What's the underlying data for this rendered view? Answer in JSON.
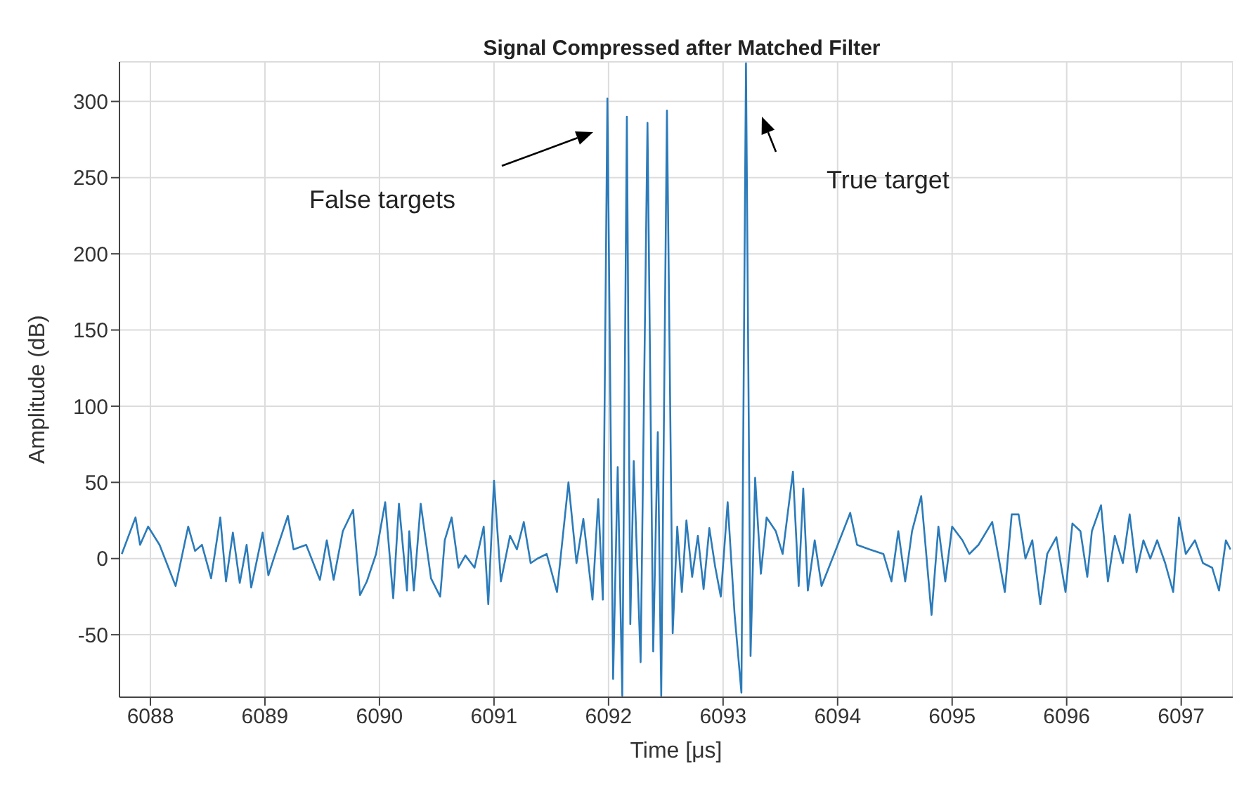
{
  "chart_data": {
    "type": "line",
    "title": "Signal Compressed after Matched Filter",
    "xlabel": "Time [μs]",
    "ylabel": "Amplitude (dB)",
    "annotations": [
      "False targets",
      "True target"
    ],
    "xlim": [
      6087.73,
      6097.45
    ],
    "ylim": [
      -91,
      326
    ],
    "xticks": [
      6088,
      6089,
      6090,
      6091,
      6092,
      6093,
      6094,
      6095,
      6096,
      6097
    ],
    "yticks": [
      -50,
      0,
      50,
      100,
      150,
      200,
      250,
      300
    ],
    "grid": true,
    "legend": false,
    "marker": "none",
    "line_style": "solid",
    "x": [
      6087.75,
      6087.87,
      6087.91,
      6087.98,
      6088.08,
      6088.22,
      6088.33,
      6088.39,
      6088.45,
      6088.53,
      6088.61,
      6088.66,
      6088.72,
      6088.78,
      6088.84,
      6088.88,
      6088.98,
      6089.03,
      6089.09,
      6089.2,
      6089.25,
      6089.36,
      6089.48,
      6089.54,
      6089.6,
      6089.68,
      6089.77,
      6089.83,
      6089.89,
      6089.97,
      6090.05,
      6090.12,
      6090.17,
      6090.24,
      6090.26,
      6090.3,
      6090.36,
      6090.45,
      6090.53,
      6090.57,
      6090.63,
      6090.69,
      6090.75,
      6090.83,
      6090.91,
      6090.95,
      6091.0,
      6091.06,
      6091.14,
      6091.2,
      6091.26,
      6091.32,
      6091.38,
      6091.46,
      6091.55,
      6091.65,
      6091.72,
      6091.78,
      6091.86,
      6091.91,
      6091.95,
      6091.99,
      6092.04,
      6092.08,
      6092.12,
      6092.16,
      6092.19,
      6092.22,
      6092.28,
      6092.34,
      6092.39,
      6092.43,
      6092.46,
      6092.51,
      6092.56,
      6092.6,
      6092.64,
      6092.68,
      6092.73,
      6092.78,
      6092.83,
      6092.88,
      6092.93,
      6092.98,
      6093.04,
      6093.1,
      6093.16,
      6093.2,
      6093.24,
      6093.28,
      6093.33,
      6093.38,
      6093.46,
      6093.52,
      6093.61,
      6093.66,
      6093.7,
      6093.74,
      6093.8,
      6093.86,
      6093.97,
      6094.11,
      6094.17,
      6094.28,
      6094.4,
      6094.47,
      6094.53,
      6094.59,
      6094.65,
      6094.73,
      6094.82,
      6094.88,
      6094.94,
      6095.0,
      6095.09,
      6095.15,
      6095.23,
      6095.35,
      6095.46,
      6095.52,
      6095.58,
      6095.64,
      6095.7,
      6095.77,
      6095.83,
      6095.91,
      6095.99,
      6096.05,
      6096.12,
      6096.18,
      6096.22,
      6096.3,
      6096.36,
      6096.42,
      6096.49,
      6096.55,
      6096.61,
      6096.67,
      6096.73,
      6096.79,
      6096.86,
      6096.93,
      6096.98,
      6097.04,
      6097.12,
      6097.19,
      6097.27,
      6097.33,
      6097.39,
      6097.43
    ],
    "series": [
      {
        "color": "#2b7bba",
        "values": [
          3,
          27,
          9,
          21,
          9,
          -18,
          21,
          5,
          9,
          -13,
          27,
          -15,
          17,
          -16,
          9,
          -19,
          17,
          -11,
          3,
          28,
          6,
          9,
          -14,
          12,
          -14,
          18,
          32,
          -24,
          -15,
          3,
          37,
          -26,
          36,
          -21,
          18,
          -21,
          36,
          -13,
          -25,
          12,
          27,
          -6,
          2,
          -6,
          21,
          -30,
          51,
          -15,
          15,
          6,
          24,
          -3,
          0,
          3,
          -22,
          50,
          -3,
          26,
          -27,
          39,
          -27,
          302,
          -79,
          60,
          -90,
          290,
          -43,
          64,
          -68,
          286,
          -61,
          83,
          -90,
          294,
          -49,
          21,
          -22,
          25,
          -12,
          15,
          -20,
          20,
          -5,
          -25,
          37,
          -36,
          -88,
          325,
          -64,
          53,
          -10,
          27,
          18,
          3,
          57,
          -18,
          46,
          -21,
          12,
          -18,
          3,
          30,
          9,
          6,
          3,
          -15,
          18,
          -15,
          18,
          41,
          -37,
          21,
          -15,
          21,
          12,
          3,
          9,
          24,
          -22,
          29,
          29,
          0,
          12,
          -30,
          3,
          14,
          -22,
          23,
          18,
          -12,
          18,
          35,
          -15,
          15,
          -3,
          29,
          -9,
          12,
          0,
          12,
          -3,
          -22,
          27,
          3,
          12,
          -3,
          -6,
          -21,
          12,
          6
        ]
      }
    ]
  }
}
